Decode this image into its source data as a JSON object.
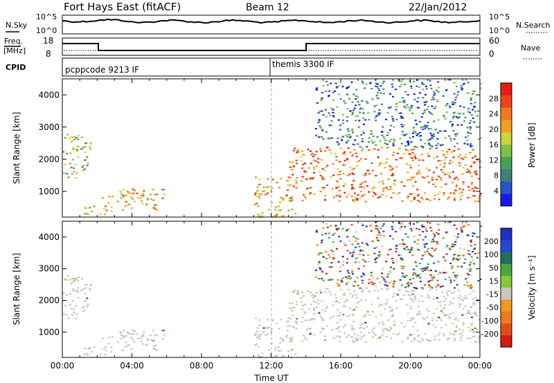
{
  "header": {
    "title": "Fort Hays East (fitACF)",
    "beam": "Beam 12",
    "date": "22/Jan/2012"
  },
  "left_labels": {
    "nsky": "N.Sky",
    "freq": "Freq.",
    "freq_unit": "[MHz]",
    "cpid": "CPID"
  },
  "right_labels": {
    "nsearch": "N.Search",
    "nave": "Nave"
  },
  "noise_ticks": {
    "top": "10^5",
    "bottom": "10^0"
  },
  "freq_ticks": {
    "left": [
      "18",
      "8"
    ],
    "right": [
      "60",
      "0"
    ]
  },
  "cpid_labels": [
    "pcppcode 9213 IF",
    "themis 3300 IF"
  ],
  "colors": {
    "power": [
      "#1a1ae6",
      "#2a55c8",
      "#3d7f7a",
      "#45a05a",
      "#7ec244",
      "#c9d43a",
      "#f2a020",
      "#f27a1e",
      "#ee4418",
      "#e61e12"
    ],
    "velocity": [
      "#1f2fc0",
      "#2848cf",
      "#226f5a",
      "#4aaa3c",
      "#88c93c",
      "#c8c8be",
      "#ef9a1c",
      "#ef7a1c",
      "#e24e1a",
      "#d81a12"
    ],
    "scatter_gray": "#c8c8be"
  },
  "chart_data": [
    {
      "type": "heatmap",
      "name": "power",
      "ylabel": "Slant Range [km]",
      "yticks": [
        "1000",
        "2000",
        "3000",
        "4000"
      ],
      "ylim": [
        200,
        4500
      ],
      "xlim": [
        0,
        24
      ],
      "colorbar_label": "Power [dB]",
      "colorbar_ticks": [
        "4",
        "8",
        "12",
        "16",
        "20",
        "24",
        "28"
      ],
      "colorbar_range": [
        0,
        32
      ],
      "regions": [
        {
          "x0": 0.0,
          "x1": 1.6,
          "y0": 1400,
          "y1": 2800,
          "level": 4
        },
        {
          "x0": 1.2,
          "x1": 2.6,
          "y0": 280,
          "y1": 600,
          "level": 6
        },
        {
          "x0": 2.2,
          "x1": 5.8,
          "y0": 400,
          "y1": 1100,
          "level": 6
        },
        {
          "x0": 11.0,
          "x1": 13.5,
          "y0": 200,
          "y1": 1500,
          "level": 6
        },
        {
          "x0": 13.0,
          "x1": 24.0,
          "y0": 700,
          "y1": 2400,
          "level": 7
        },
        {
          "x0": 14.5,
          "x1": 24.0,
          "y0": 2400,
          "y1": 4500,
          "level": 2
        }
      ]
    },
    {
      "type": "heatmap",
      "name": "velocity",
      "ylabel": "Slant Range [km]",
      "yticks": [
        "1000",
        "2000",
        "3000",
        "4000"
      ],
      "ylim": [
        200,
        4500
      ],
      "xlim": [
        0,
        24
      ],
      "xlabel": "Time UT",
      "xticks": [
        "00:00",
        "04:00",
        "08:00",
        "12:00",
        "16:00",
        "20:00",
        "00:00"
      ],
      "colorbar_label": "Velocity [m s⁻¹]",
      "colorbar_ticks": [
        "200",
        "100",
        "50",
        "15",
        "-15",
        "-50",
        "-100",
        "-200"
      ],
      "colorbar_range": [
        -250,
        250
      ]
    }
  ]
}
